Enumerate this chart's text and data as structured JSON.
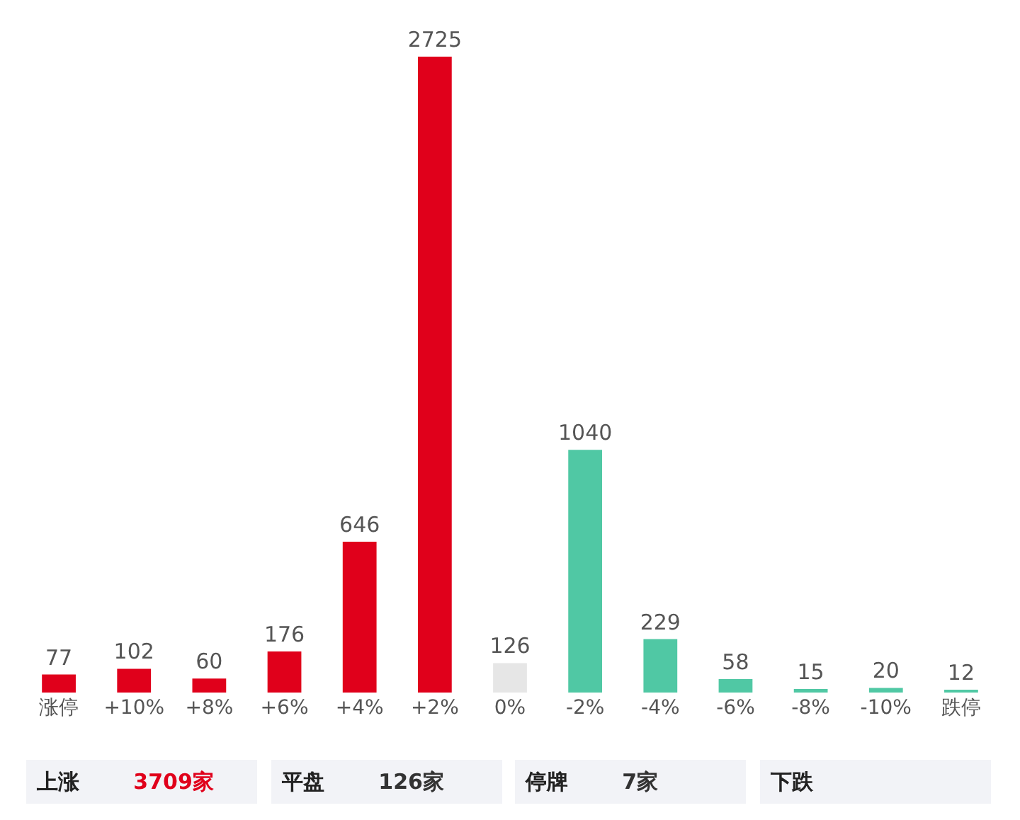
{
  "chart_data": {
    "type": "bar",
    "categories": [
      "涨停",
      "+10%",
      "+8%",
      "+6%",
      "+4%",
      "+2%",
      "0%",
      "-2%",
      "-4%",
      "-6%",
      "-8%",
      "-10%",
      "跌停"
    ],
    "values": [
      77,
      102,
      60,
      176,
      646,
      2725,
      126,
      1040,
      229,
      58,
      15,
      20,
      12
    ],
    "colors": [
      "#e0001b",
      "#e0001b",
      "#e0001b",
      "#e0001b",
      "#e0001b",
      "#e0001b",
      "#e6e6e6",
      "#50c8a4",
      "#50c8a4",
      "#50c8a4",
      "#50c8a4",
      "#50c8a4",
      "#50c8a4"
    ],
    "data_labels": true,
    "annotations": [
      "上涨 3709家",
      "平盘 126家",
      "停牌 7家",
      "下跌"
    ]
  }
}
